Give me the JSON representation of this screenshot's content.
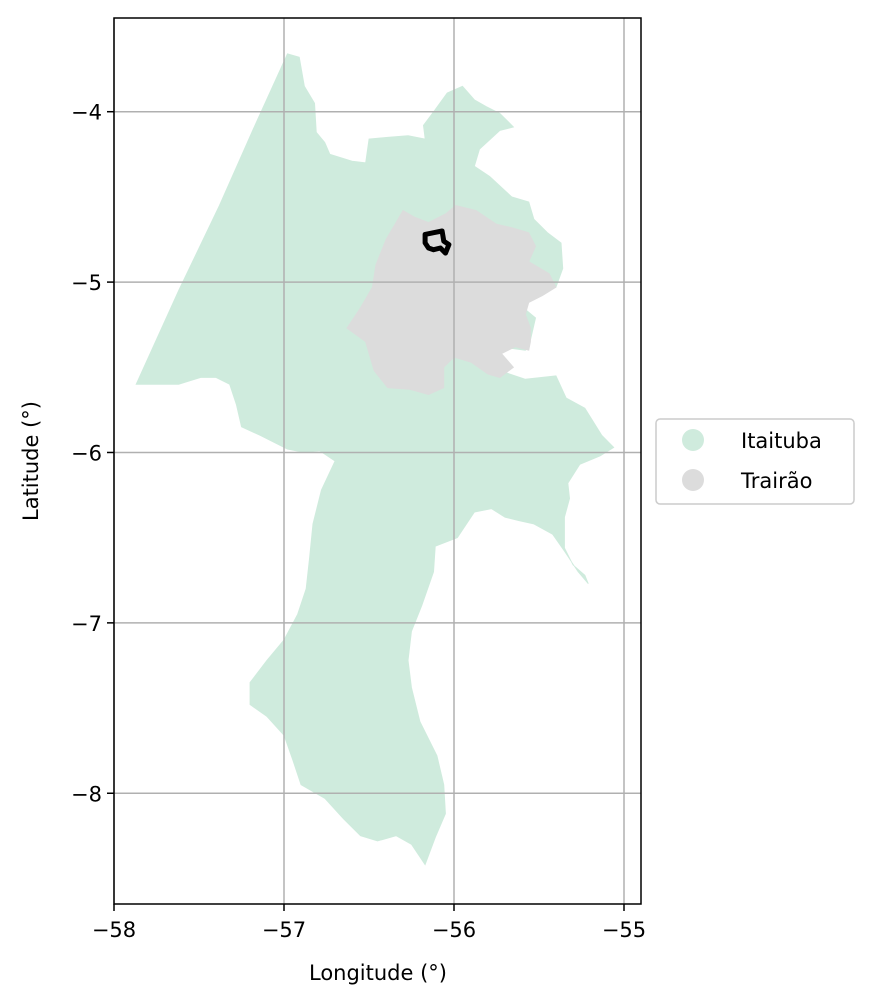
{
  "chart_data": {
    "type": "map",
    "xlabel": "Longitude (°)",
    "ylabel": "Latitude (°)",
    "xlim": [
      -58.0,
      -54.9
    ],
    "ylim": [
      -8.65,
      -3.45
    ],
    "xticks": [
      -58,
      -57,
      -56,
      -55
    ],
    "yticks": [
      -4,
      -5,
      -6,
      -7,
      -8
    ],
    "xtick_labels": [
      "−58",
      "−57",
      "−56",
      "−55"
    ],
    "ytick_labels": [
      "−4",
      "−5",
      "−6",
      "−7",
      "−8"
    ],
    "grid": true,
    "legend_position": "center-right outside",
    "legend": [
      {
        "label": "Itaituba",
        "color": "#cfebdd"
      },
      {
        "label": "Trairão",
        "color": "#dcdcdc"
      }
    ],
    "regions": [
      {
        "name": "Itaituba",
        "color": "#cfebdd",
        "polygon": [
          [
            -56.98,
            -3.66
          ],
          [
            -56.91,
            -3.68
          ],
          [
            -56.88,
            -3.85
          ],
          [
            -56.82,
            -3.95
          ],
          [
            -56.81,
            -4.12
          ],
          [
            -56.76,
            -4.18
          ],
          [
            -56.73,
            -4.25
          ],
          [
            -56.6,
            -4.29
          ],
          [
            -56.52,
            -4.3
          ],
          [
            -56.5,
            -4.16
          ],
          [
            -56.39,
            -4.15
          ],
          [
            -56.27,
            -4.14
          ],
          [
            -56.17,
            -4.16
          ],
          [
            -56.18,
            -4.08
          ],
          [
            -56.12,
            -4.0
          ],
          [
            -56.04,
            -3.89
          ],
          [
            -55.95,
            -3.85
          ],
          [
            -55.88,
            -3.93
          ],
          [
            -55.81,
            -3.97
          ],
          [
            -55.73,
            -4.01
          ],
          [
            -55.65,
            -4.09
          ],
          [
            -55.73,
            -4.11
          ],
          [
            -55.85,
            -4.22
          ],
          [
            -55.88,
            -4.32
          ],
          [
            -55.79,
            -4.38
          ],
          [
            -55.66,
            -4.5
          ],
          [
            -55.56,
            -4.53
          ],
          [
            -55.53,
            -4.63
          ],
          [
            -55.45,
            -4.71
          ],
          [
            -55.37,
            -4.77
          ],
          [
            -55.36,
            -4.92
          ],
          [
            -55.4,
            -5.03
          ],
          [
            -55.5,
            -5.07
          ],
          [
            -55.56,
            -5.1
          ],
          [
            -55.58,
            -5.16
          ],
          [
            -55.52,
            -5.21
          ],
          [
            -55.55,
            -5.34
          ],
          [
            -55.58,
            -5.4
          ],
          [
            -55.66,
            -5.39
          ],
          [
            -55.75,
            -5.43
          ],
          [
            -55.7,
            -5.53
          ],
          [
            -55.58,
            -5.57
          ],
          [
            -55.4,
            -5.55
          ],
          [
            -55.34,
            -5.68
          ],
          [
            -55.23,
            -5.74
          ],
          [
            -55.13,
            -5.9
          ],
          [
            -55.06,
            -5.97
          ],
          [
            -55.14,
            -6.02
          ],
          [
            -55.26,
            -6.07
          ],
          [
            -55.33,
            -6.18
          ],
          [
            -55.32,
            -6.27
          ],
          [
            -55.35,
            -6.38
          ],
          [
            -55.35,
            -6.56
          ],
          [
            -55.3,
            -6.66
          ],
          [
            -55.23,
            -6.72
          ],
          [
            -55.21,
            -6.77
          ],
          [
            -55.27,
            -6.7
          ],
          [
            -55.35,
            -6.58
          ],
          [
            -55.42,
            -6.48
          ],
          [
            -55.53,
            -6.42
          ],
          [
            -55.62,
            -6.4
          ],
          [
            -55.7,
            -6.38
          ],
          [
            -55.78,
            -6.33
          ],
          [
            -55.88,
            -6.35
          ],
          [
            -55.98,
            -6.5
          ],
          [
            -56.11,
            -6.55
          ],
          [
            -56.12,
            -6.7
          ],
          [
            -56.19,
            -6.9
          ],
          [
            -56.25,
            -7.05
          ],
          [
            -56.27,
            -7.22
          ],
          [
            -56.25,
            -7.38
          ],
          [
            -56.2,
            -7.58
          ],
          [
            -56.1,
            -7.78
          ],
          [
            -56.06,
            -7.95
          ],
          [
            -56.05,
            -8.12
          ],
          [
            -56.11,
            -8.26
          ],
          [
            -56.17,
            -8.42
          ],
          [
            -56.25,
            -8.3
          ],
          [
            -56.34,
            -8.25
          ],
          [
            -56.45,
            -8.28
          ],
          [
            -56.55,
            -8.25
          ],
          [
            -56.65,
            -8.15
          ],
          [
            -56.76,
            -8.03
          ],
          [
            -56.9,
            -7.95
          ],
          [
            -56.95,
            -7.8
          ],
          [
            -57.0,
            -7.66
          ],
          [
            -57.1,
            -7.55
          ],
          [
            -57.2,
            -7.48
          ],
          [
            -57.2,
            -7.35
          ],
          [
            -57.1,
            -7.22
          ],
          [
            -57.0,
            -7.1
          ],
          [
            -56.92,
            -6.95
          ],
          [
            -56.87,
            -6.8
          ],
          [
            -56.85,
            -6.62
          ],
          [
            -56.83,
            -6.42
          ],
          [
            -56.78,
            -6.22
          ],
          [
            -56.7,
            -6.05
          ],
          [
            -56.79,
            -5.99
          ],
          [
            -56.88,
            -6.0
          ],
          [
            -56.98,
            -5.98
          ],
          [
            -57.14,
            -5.9
          ],
          [
            -57.25,
            -5.85
          ],
          [
            -57.28,
            -5.72
          ],
          [
            -57.32,
            -5.6
          ],
          [
            -57.4,
            -5.56
          ],
          [
            -57.49,
            -5.56
          ],
          [
            -57.62,
            -5.6
          ],
          [
            -57.78,
            -5.6
          ],
          [
            -57.87,
            -5.6
          ],
          [
            -57.62,
            -5.05
          ],
          [
            -57.38,
            -4.55
          ],
          [
            -57.18,
            -4.1
          ],
          [
            -56.98,
            -3.66
          ]
        ]
      },
      {
        "name": "Trairão",
        "color": "#dcdcdc",
        "polygon": [
          [
            -56.3,
            -4.58
          ],
          [
            -56.23,
            -4.62
          ],
          [
            -56.15,
            -4.65
          ],
          [
            -56.05,
            -4.6
          ],
          [
            -55.99,
            -4.55
          ],
          [
            -55.87,
            -4.58
          ],
          [
            -55.75,
            -4.66
          ],
          [
            -55.66,
            -4.68
          ],
          [
            -55.56,
            -4.71
          ],
          [
            -55.52,
            -4.79
          ],
          [
            -55.56,
            -4.88
          ],
          [
            -55.44,
            -4.95
          ],
          [
            -55.4,
            -5.03
          ],
          [
            -55.48,
            -5.08
          ],
          [
            -55.56,
            -5.12
          ],
          [
            -55.58,
            -5.19
          ],
          [
            -55.55,
            -5.27
          ],
          [
            -55.55,
            -5.35
          ],
          [
            -55.56,
            -5.4
          ],
          [
            -55.64,
            -5.38
          ],
          [
            -55.72,
            -5.42
          ],
          [
            -55.65,
            -5.5
          ],
          [
            -55.73,
            -5.56
          ],
          [
            -55.8,
            -5.54
          ],
          [
            -55.9,
            -5.47
          ],
          [
            -56.0,
            -5.44
          ],
          [
            -56.06,
            -5.5
          ],
          [
            -56.06,
            -5.62
          ],
          [
            -56.15,
            -5.66
          ],
          [
            -56.26,
            -5.63
          ],
          [
            -56.39,
            -5.62
          ],
          [
            -56.47,
            -5.52
          ],
          [
            -56.52,
            -5.35
          ],
          [
            -56.63,
            -5.27
          ],
          [
            -56.55,
            -5.15
          ],
          [
            -56.48,
            -5.03
          ],
          [
            -56.46,
            -4.9
          ],
          [
            -56.4,
            -4.75
          ],
          [
            -56.3,
            -4.58
          ]
        ]
      }
    ],
    "highlight_outline": {
      "color": "#000000",
      "polygon": [
        [
          -56.17,
          -4.72
        ],
        [
          -56.12,
          -4.71
        ],
        [
          -56.07,
          -4.7
        ],
        [
          -56.06,
          -4.76
        ],
        [
          -56.03,
          -4.78
        ],
        [
          -56.05,
          -4.83
        ],
        [
          -56.08,
          -4.8
        ],
        [
          -56.12,
          -4.81
        ],
        [
          -56.15,
          -4.8
        ],
        [
          -56.17,
          -4.77
        ],
        [
          -56.17,
          -4.72
        ]
      ]
    }
  }
}
